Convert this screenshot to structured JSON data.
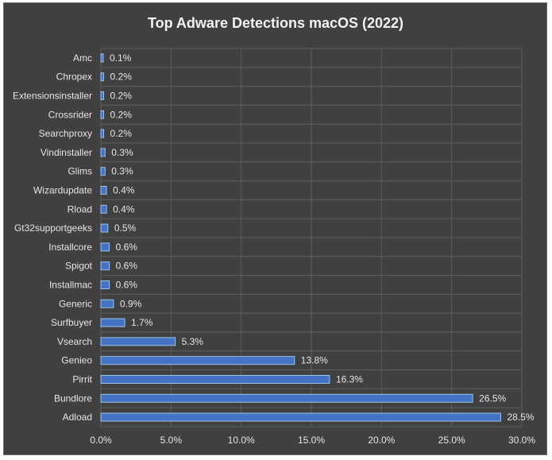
{
  "chart_data": {
    "type": "bar",
    "orientation": "horizontal",
    "title": "Top Adware Detections macOS (2022)",
    "xlabel": "",
    "ylabel": "",
    "xlim": [
      0,
      30
    ],
    "xticks": [
      0,
      5,
      10,
      15,
      20,
      25,
      30
    ],
    "xtick_labels": [
      "0.0%",
      "5.0%",
      "10.0%",
      "15.0%",
      "20.0%",
      "25.0%",
      "30.0%"
    ],
    "grid": true,
    "legend": "none",
    "categories": [
      "Amc",
      "Chropex",
      "Extensionsinstaller",
      "Crossrider",
      "Searchproxy",
      "Vindinstaller",
      "Glims",
      "Wizardupdate",
      "Rload",
      "Gt32supportgeeks",
      "Installcore",
      "Spigot",
      "Installmac",
      "Generic",
      "Surfbuyer",
      "Vsearch",
      "Genieo",
      "Pirrit",
      "Bundlore",
      "Adload"
    ],
    "values": [
      0.1,
      0.2,
      0.2,
      0.2,
      0.2,
      0.3,
      0.3,
      0.4,
      0.4,
      0.5,
      0.6,
      0.6,
      0.6,
      0.9,
      1.7,
      5.3,
      13.8,
      16.3,
      26.5,
      28.5
    ],
    "data_labels": [
      "0.1%",
      "0.2%",
      "0.2%",
      "0.2%",
      "0.2%",
      "0.3%",
      "0.3%",
      "0.4%",
      "0.4%",
      "0.5%",
      "0.6%",
      "0.6%",
      "0.6%",
      "0.9%",
      "1.7%",
      "5.3%",
      "13.8%",
      "16.3%",
      "26.5%",
      "28.5%"
    ],
    "colors": {
      "background": "#404040",
      "bar_fill": "#4472c4",
      "bar_edge": "#9dc3e6",
      "grid": "#5e5e5e",
      "text": "#e6e6e6"
    }
  }
}
